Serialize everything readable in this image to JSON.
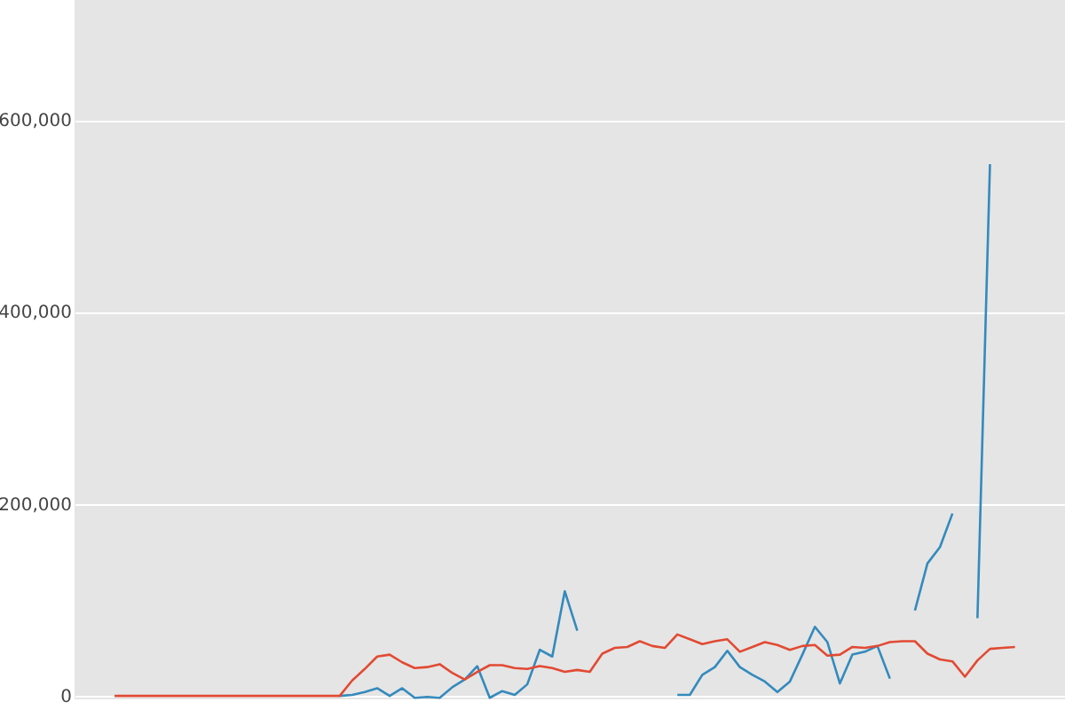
{
  "chart_data": {
    "type": "line",
    "categories": [
      null,
      null,
      null,
      null,
      null,
      null,
      null,
      null,
      null,
      null,
      null,
      null,
      null,
      null,
      null,
      null,
      null,
      null,
      null,
      null,
      null,
      null,
      null,
      null,
      null,
      null,
      null,
      null,
      null,
      null,
      null,
      null,
      null,
      null,
      null,
      null,
      null,
      null,
      null,
      null,
      null,
      null,
      null,
      null,
      null,
      null,
      null,
      null,
      null,
      null,
      null,
      null,
      null,
      null,
      null,
      null,
      null,
      null,
      null,
      null,
      null,
      null,
      null,
      null,
      null,
      null,
      null,
      null,
      null,
      null,
      null,
      null,
      null
    ],
    "series": [
      {
        "color": "#e24a33",
        "values": [
          0,
          0,
          0,
          0,
          0,
          0,
          0,
          0,
          0,
          0,
          0,
          0,
          0,
          0,
          0,
          0,
          0,
          0,
          0,
          16000,
          28000,
          41000,
          43000,
          35000,
          29000,
          30000,
          33000,
          24000,
          17000,
          25000,
          32000,
          32000,
          29000,
          28000,
          31000,
          29000,
          25000,
          27000,
          25000,
          44000,
          50000,
          51000,
          57000,
          52000,
          50000,
          64000,
          59000,
          54000,
          57000,
          59000,
          46000,
          51000,
          56000,
          53000,
          48000,
          52000,
          53000,
          42000,
          43000,
          51000,
          50000,
          52000,
          56000,
          57000,
          57000,
          44000,
          38000,
          36000,
          20000,
          37000,
          49000,
          50000,
          51000
        ]
      },
      {
        "color": "#348abd",
        "values": [
          null,
          null,
          null,
          null,
          null,
          null,
          null,
          null,
          null,
          null,
          null,
          null,
          null,
          null,
          null,
          null,
          null,
          null,
          0,
          1000,
          4000,
          8000,
          0,
          8000,
          -2000,
          -1000,
          -2000,
          9000,
          17000,
          31000,
          -2000,
          5000,
          1000,
          12000,
          48000,
          41000,
          109000,
          68000,
          null,
          null,
          null,
          null,
          null,
          null,
          null,
          1000,
          1000,
          22000,
          30000,
          47000,
          30000,
          22000,
          15000,
          4000,
          15000,
          43000,
          72000,
          56000,
          13000,
          43000,
          46000,
          52000,
          18000,
          null,
          89000,
          138000,
          155000,
          190000,
          null,
          81000,
          554000,
          null,
          null
        ]
      }
    ],
    "ylim": [
      -3600,
      725000
    ],
    "yticks": [
      {
        "value": 0,
        "label": "0"
      },
      {
        "value": 200000,
        "label": "200,000"
      },
      {
        "value": 400000,
        "label": "400,000"
      },
      {
        "value": 600000,
        "label": "600,000"
      }
    ],
    "tick_labels": "y",
    "grid": "y",
    "marker": "none",
    "line_style": "solid"
  }
}
